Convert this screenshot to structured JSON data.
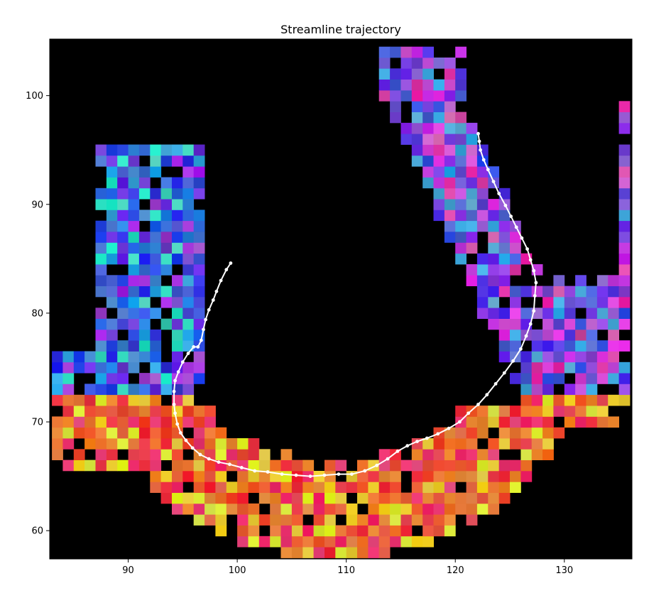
{
  "chart_data": {
    "type": "scatter",
    "title": "Streamline trajectory",
    "xlabel": "",
    "ylabel": "",
    "xlim": [
      82.8,
      136.2
    ],
    "ylim": [
      57.4,
      105.2
    ],
    "xticks": [
      90,
      100,
      110,
      120,
      130
    ],
    "yticks": [
      60,
      70,
      80,
      90,
      100
    ],
    "background_color": "#000000",
    "grid": false,
    "background_field": "RGB direction-encoded voxel field (pixelated image) forming a horseshoe shape",
    "series": [
      {
        "line_color": "#ffffff",
        "marker": "circle",
        "x": [
          99.4,
          99.0,
          98.5,
          98.1,
          97.8,
          97.4,
          97.1,
          96.9,
          96.7,
          96.4,
          96.0,
          95.5,
          95.0,
          94.6,
          94.3,
          94.2,
          94.2,
          94.3,
          94.5,
          94.8,
          95.3,
          95.9,
          96.6,
          97.4,
          98.3,
          99.3,
          100.4,
          101.6,
          102.8,
          104.1,
          105.4,
          106.7,
          108.0,
          109.3,
          110.5,
          111.7,
          112.8,
          113.8,
          114.7,
          115.6,
          116.5,
          117.4,
          118.4,
          119.4,
          120.4,
          121.2,
          122.1,
          122.9,
          123.7,
          124.5,
          125.3,
          126.0,
          126.5,
          126.9,
          127.2,
          127.3,
          127.4,
          127.2,
          126.9,
          126.6,
          126.1,
          125.6,
          125.1,
          124.6,
          124.0,
          123.5,
          123.0,
          122.6,
          122.3,
          122.2,
          122.1
        ],
        "y": [
          84.6,
          84.0,
          83.0,
          82.0,
          81.2,
          80.3,
          79.4,
          78.5,
          77.5,
          76.9,
          76.9,
          76.3,
          75.5,
          74.6,
          73.8,
          72.8,
          71.6,
          70.8,
          69.8,
          69.0,
          68.3,
          67.6,
          67.0,
          66.6,
          66.3,
          66.1,
          65.8,
          65.5,
          65.4,
          65.2,
          65.1,
          65.0,
          65.1,
          65.2,
          65.2,
          65.5,
          66.0,
          66.6,
          67.3,
          67.8,
          68.2,
          68.5,
          68.9,
          69.4,
          70.0,
          70.8,
          71.6,
          72.5,
          73.5,
          74.5,
          75.6,
          76.7,
          77.9,
          79.0,
          80.2,
          81.6,
          82.8,
          83.9,
          84.9,
          85.9,
          86.9,
          87.9,
          88.9,
          89.9,
          91.0,
          92.1,
          93.2,
          94.1,
          95.0,
          95.8,
          96.5
        ]
      }
    ]
  }
}
